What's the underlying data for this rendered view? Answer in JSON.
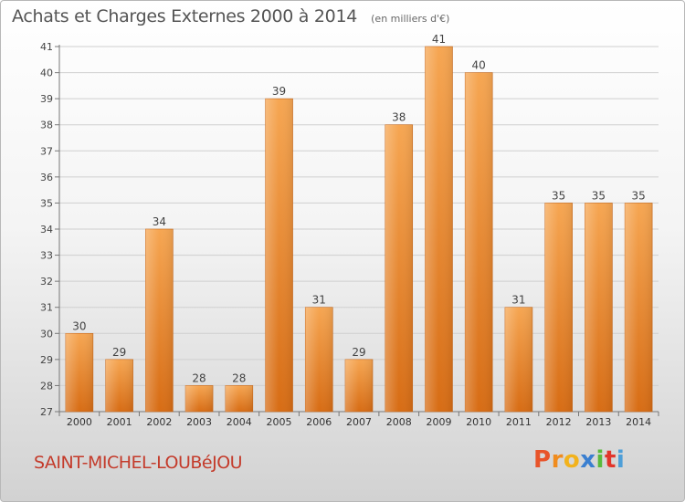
{
  "title": "Achats et Charges Externes 2000 à 2014",
  "unit": "(en milliers d'€)",
  "commune": "SAINT-MICHEL-LOUBéJOU",
  "brand": {
    "letters": [
      "P",
      "r",
      "o",
      "x",
      "i",
      "t",
      "i"
    ],
    "colors": [
      "#e8542a",
      "#f08c1e",
      "#f2b21c",
      "#3a7fd0",
      "#5ab93c",
      "#e2352b",
      "#4e9fd8"
    ]
  },
  "chart_data": {
    "type": "bar",
    "title": "Achats et Charges Externes 2000 à 2014",
    "subtitle": "(en milliers d'€)",
    "xlabel": "",
    "ylabel": "",
    "categories": [
      "2000",
      "2001",
      "2002",
      "2003",
      "2004",
      "2005",
      "2006",
      "2007",
      "2008",
      "2009",
      "2010",
      "2011",
      "2012",
      "2013",
      "2014"
    ],
    "values": [
      30,
      29,
      34,
      28,
      28,
      39,
      31,
      29,
      38,
      41,
      40,
      31,
      35,
      35,
      35
    ],
    "ylim": [
      27,
      41
    ],
    "yticks": [
      27,
      28,
      29,
      30,
      31,
      32,
      33,
      34,
      35,
      36,
      37,
      38,
      39,
      40,
      41
    ],
    "grid": true,
    "bar_color": "#f0902e",
    "data_labels": true
  }
}
